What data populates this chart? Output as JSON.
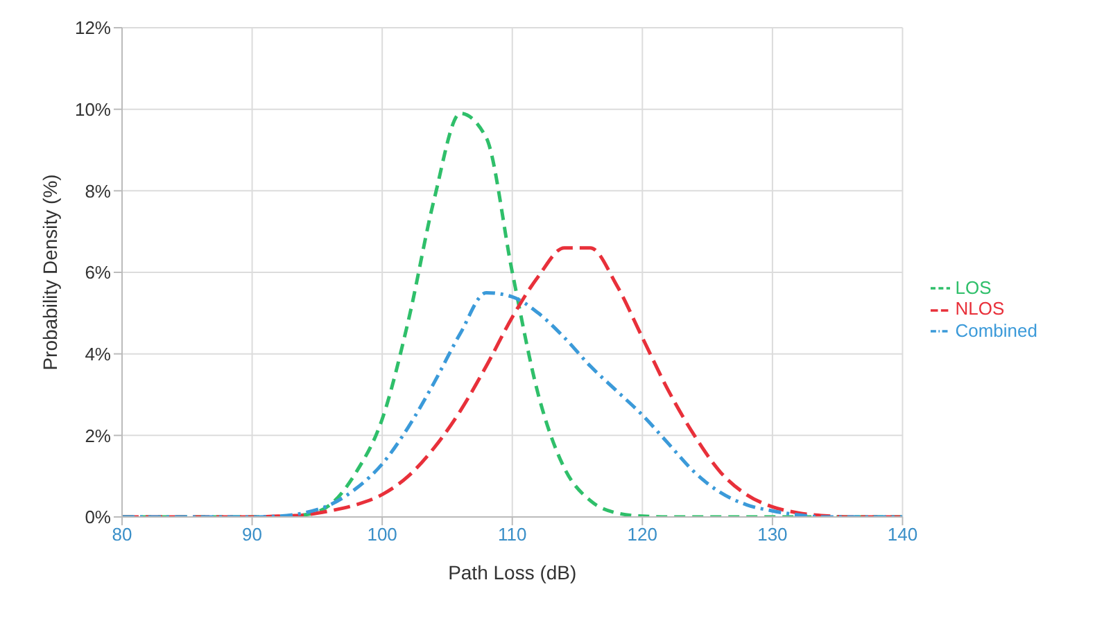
{
  "chart_data": {
    "type": "line",
    "xlabel": "Path Loss (dB)",
    "ylabel": "Probability Density (%)",
    "x": [
      80,
      82,
      84,
      86,
      88,
      90,
      92,
      94,
      96,
      98,
      100,
      102,
      104,
      106,
      108,
      110,
      112,
      114,
      116,
      118,
      120,
      122,
      124,
      126,
      128,
      130,
      132,
      134,
      136,
      138,
      140
    ],
    "series": [
      {
        "name": "LOS",
        "color": "#2fbf6a",
        "line_style": "dashed",
        "values": [
          0,
          0,
          0,
          0,
          0,
          0,
          0.01,
          0.05,
          0.3,
          1.1,
          2.4,
          4.8,
          7.8,
          9.9,
          9.3,
          6.0,
          3.0,
          1.2,
          0.4,
          0.1,
          0.02,
          0,
          0,
          0,
          0,
          0,
          0,
          0,
          0,
          0,
          0
        ]
      },
      {
        "name": "NLOS",
        "color": "#e8303a",
        "line_style": "dashed",
        "values": [
          0,
          0,
          0,
          0,
          0,
          0,
          0.02,
          0.05,
          0.15,
          0.3,
          0.55,
          1.0,
          1.7,
          2.6,
          3.7,
          4.9,
          5.9,
          6.6,
          6.6,
          5.7,
          4.4,
          3.1,
          2.0,
          1.1,
          0.55,
          0.25,
          0.1,
          0.03,
          0,
          0,
          0
        ]
      },
      {
        "name": "Combined",
        "color": "#3b9ad9",
        "line_style": "dashed",
        "values": [
          0,
          0,
          0,
          0,
          0,
          0,
          0.02,
          0.1,
          0.3,
          0.7,
          1.3,
          2.2,
          3.3,
          4.5,
          5.5,
          5.4,
          5.0,
          4.4,
          3.7,
          3.1,
          2.5,
          1.8,
          1.1,
          0.6,
          0.3,
          0.15,
          0.05,
          0,
          0,
          0,
          0
        ]
      }
    ],
    "xlim": [
      80,
      140
    ],
    "xticks": [
      80,
      90,
      100,
      110,
      120,
      130,
      140
    ],
    "ylim": [
      0,
      12
    ],
    "yticks": [
      {
        "value": 0,
        "label": "0%"
      },
      {
        "value": 2,
        "label": "2%"
      },
      {
        "value": 4,
        "label": "4%"
      },
      {
        "value": 6,
        "label": "6%"
      },
      {
        "value": 8,
        "label": "8%"
      },
      {
        "value": 10,
        "label": "10%"
      },
      {
        "value": 12,
        "label": "12%"
      }
    ],
    "grid": true,
    "legend": "right",
    "marker": "none"
  }
}
